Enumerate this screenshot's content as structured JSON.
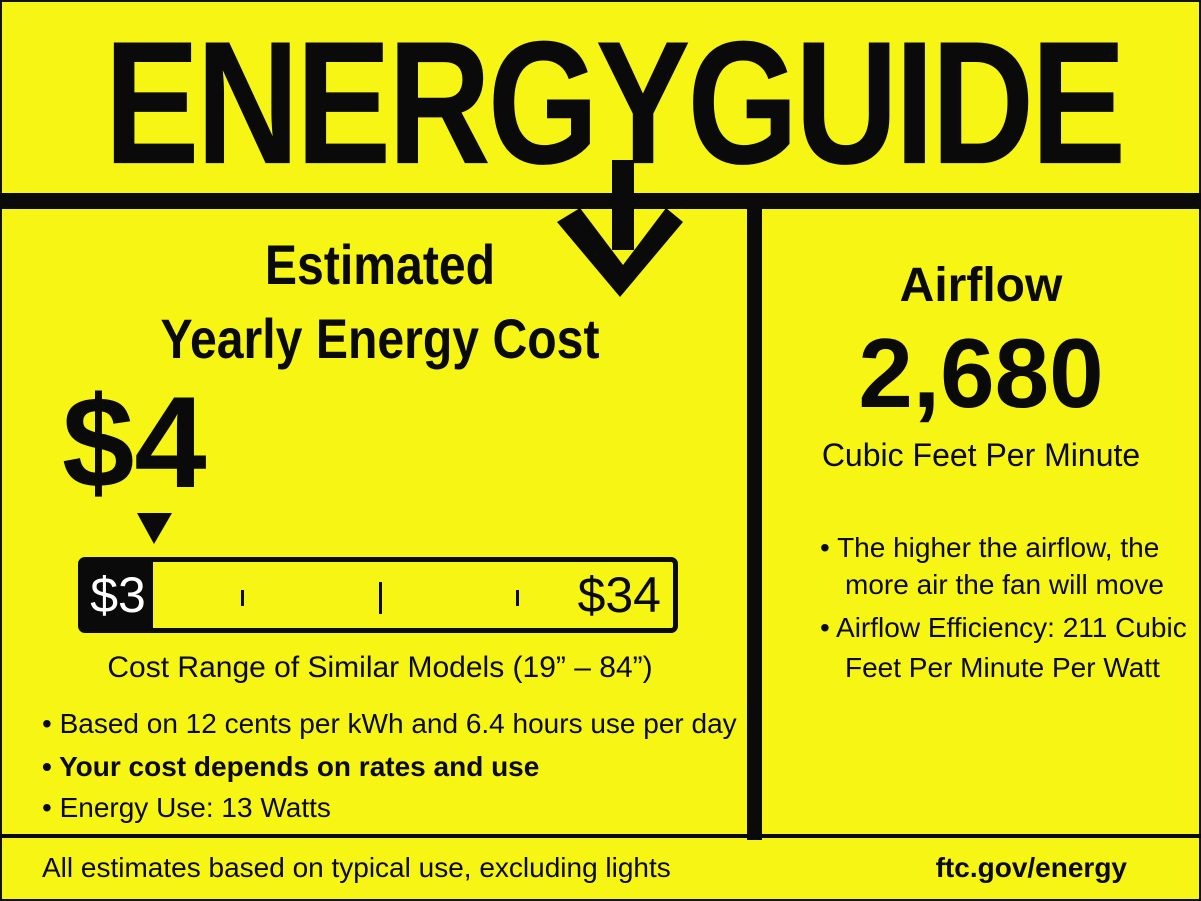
{
  "header": {
    "logo": "ENERGYGUIDE"
  },
  "cost": {
    "heading_line1": "Estimated",
    "heading_line2": "Yearly Energy Cost",
    "value": "$4",
    "range_low": "$3",
    "range_high": "$34",
    "range_label": "Cost Range of Similar Models (19” – 84”)",
    "bullets": [
      "• Based on 12 cents per kWh and 6.4 hours use per day",
      "• Your cost depends on rates and use",
      "• Energy Use:  13 Watts"
    ]
  },
  "airflow": {
    "heading": "Airflow",
    "value": "2,680",
    "unit": "Cubic Feet Per Minute",
    "bullet1_line1": "• The higher the airflow, the",
    "bullet1_line2": "more air the fan will move",
    "bullet2_line1": "• Airflow Efficiency: 211 Cubic",
    "bullet2_line2": "Feet Per Minute Per Watt"
  },
  "footer": {
    "note": "All estimates based on typical use, excluding lights",
    "link": "ftc.gov/energy"
  },
  "colors": {
    "background": "#f6f514",
    "ink": "#0a0a0a"
  }
}
